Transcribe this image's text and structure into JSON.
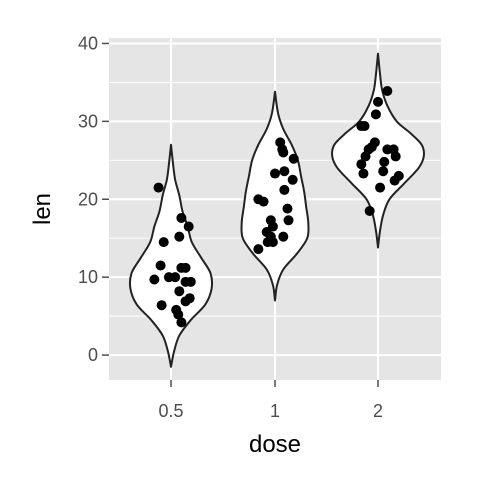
{
  "chart_data": {
    "type": "violin",
    "title": "",
    "xlabel": "dose",
    "ylabel": "len",
    "ylim": [
      -3.2,
      40.7
    ],
    "yticks": [
      0,
      10,
      20,
      30,
      40
    ],
    "ytick_labels": [
      "0",
      "10",
      "20",
      "30",
      "40"
    ],
    "grid": true,
    "legend": "none",
    "colors": {
      "panel": "#e5e5e5",
      "grid": "#ffffff",
      "violin_fill": "#ffffff",
      "violin_stroke": "#222222",
      "point": "#000000",
      "tick_label": "#4d4d4d"
    },
    "categories": [
      "0.5",
      "1",
      "2"
    ],
    "series": [
      {
        "category": "0.5",
        "points": [
          {
            "x": -0.12,
            "y": 21.5
          },
          {
            "x": 0.1,
            "y": 17.6
          },
          {
            "x": 0.17,
            "y": 16.5
          },
          {
            "x": 0.08,
            "y": 15.2
          },
          {
            "x": -0.07,
            "y": 14.5
          },
          {
            "x": -0.1,
            "y": 11.5
          },
          {
            "x": 0.1,
            "y": 11.2
          },
          {
            "x": 0.14,
            "y": 11.2
          },
          {
            "x": -0.16,
            "y": 9.7
          },
          {
            "x": -0.02,
            "y": 10.0
          },
          {
            "x": 0.04,
            "y": 10.0
          },
          {
            "x": 0.14,
            "y": 9.4
          },
          {
            "x": 0.19,
            "y": 9.4
          },
          {
            "x": 0.08,
            "y": 8.2
          },
          {
            "x": 0.18,
            "y": 7.3
          },
          {
            "x": 0.14,
            "y": 6.9
          },
          {
            "x": -0.09,
            "y": 6.4
          },
          {
            "x": 0.05,
            "y": 5.8
          },
          {
            "x": 0.07,
            "y": 5.2
          },
          {
            "x": 0.1,
            "y": 4.2
          }
        ],
        "density": [
          {
            "y": -1.5,
            "hw": 0.0
          },
          {
            "y": 0.5,
            "hw": 0.03
          },
          {
            "y": 2.5,
            "hw": 0.08
          },
          {
            "y": 4.5,
            "hw": 0.19
          },
          {
            "y": 6.5,
            "hw": 0.33
          },
          {
            "y": 8.5,
            "hw": 0.39
          },
          {
            "y": 10.5,
            "hw": 0.38
          },
          {
            "y": 12.5,
            "hw": 0.29
          },
          {
            "y": 14.5,
            "hw": 0.2
          },
          {
            "y": 16.5,
            "hw": 0.16
          },
          {
            "y": 18.5,
            "hw": 0.11
          },
          {
            "y": 20.5,
            "hw": 0.08
          },
          {
            "y": 22.5,
            "hw": 0.04
          },
          {
            "y": 24.5,
            "hw": 0.02
          },
          {
            "y": 27.0,
            "hw": 0.0
          }
        ]
      },
      {
        "category": "1",
        "points": [
          {
            "x": 0.05,
            "y": 27.3
          },
          {
            "x": 0.07,
            "y": 26.4
          },
          {
            "x": 0.08,
            "y": 26.0
          },
          {
            "x": 0.18,
            "y": 25.2
          },
          {
            "x": 0.0,
            "y": 23.3
          },
          {
            "x": 0.09,
            "y": 23.6
          },
          {
            "x": 0.17,
            "y": 22.5
          },
          {
            "x": 0.09,
            "y": 21.2
          },
          {
            "x": -0.16,
            "y": 20.0
          },
          {
            "x": -0.11,
            "y": 19.7
          },
          {
            "x": 0.12,
            "y": 18.8
          },
          {
            "x": -0.04,
            "y": 17.3
          },
          {
            "x": -0.02,
            "y": 16.5
          },
          {
            "x": 0.13,
            "y": 17.3
          },
          {
            "x": -0.08,
            "y": 15.8
          },
          {
            "x": -0.04,
            "y": 15.2
          },
          {
            "x": 0.08,
            "y": 15.2
          },
          {
            "x": -0.02,
            "y": 14.5
          },
          {
            "x": -0.07,
            "y": 14.5
          },
          {
            "x": -0.16,
            "y": 13.6
          }
        ],
        "density": [
          {
            "y": 7.0,
            "hw": 0.0
          },
          {
            "y": 9.0,
            "hw": 0.02
          },
          {
            "y": 11.0,
            "hw": 0.08
          },
          {
            "y": 13.0,
            "hw": 0.21
          },
          {
            "y": 15.0,
            "hw": 0.31
          },
          {
            "y": 17.0,
            "hw": 0.32
          },
          {
            "y": 19.0,
            "hw": 0.3
          },
          {
            "y": 21.0,
            "hw": 0.28
          },
          {
            "y": 23.0,
            "hw": 0.25
          },
          {
            "y": 25.0,
            "hw": 0.22
          },
          {
            "y": 27.0,
            "hw": 0.16
          },
          {
            "y": 29.0,
            "hw": 0.08
          },
          {
            "y": 31.0,
            "hw": 0.03
          },
          {
            "y": 33.8,
            "hw": 0.0
          }
        ]
      },
      {
        "category": "2",
        "points": [
          {
            "x": 0.09,
            "y": 33.9
          },
          {
            "x": 0.0,
            "y": 32.5
          },
          {
            "x": -0.02,
            "y": 30.9
          },
          {
            "x": -0.13,
            "y": 29.4
          },
          {
            "x": -0.16,
            "y": 29.4
          },
          {
            "x": -0.03,
            "y": 27.3
          },
          {
            "x": -0.06,
            "y": 26.7
          },
          {
            "x": -0.09,
            "y": 26.4
          },
          {
            "x": 0.15,
            "y": 26.4
          },
          {
            "x": 0.09,
            "y": 26.4
          },
          {
            "x": -0.12,
            "y": 25.5
          },
          {
            "x": 0.17,
            "y": 25.5
          },
          {
            "x": 0.06,
            "y": 24.8
          },
          {
            "x": -0.16,
            "y": 24.5
          },
          {
            "x": 0.05,
            "y": 23.6
          },
          {
            "x": 0.2,
            "y": 23.0
          },
          {
            "x": -0.14,
            "y": 23.3
          },
          {
            "x": 0.16,
            "y": 22.4
          },
          {
            "x": 0.02,
            "y": 21.5
          },
          {
            "x": -0.08,
            "y": 18.5
          }
        ],
        "density": [
          {
            "y": 13.8,
            "hw": 0.0
          },
          {
            "y": 16.0,
            "hw": 0.02
          },
          {
            "y": 18.0,
            "hw": 0.05
          },
          {
            "y": 20.0,
            "hw": 0.11
          },
          {
            "y": 22.0,
            "hw": 0.25
          },
          {
            "y": 24.0,
            "hw": 0.39
          },
          {
            "y": 25.5,
            "hw": 0.44
          },
          {
            "y": 27.0,
            "hw": 0.42
          },
          {
            "y": 28.5,
            "hw": 0.31
          },
          {
            "y": 30.0,
            "hw": 0.18
          },
          {
            "y": 32.0,
            "hw": 0.09
          },
          {
            "y": 34.0,
            "hw": 0.04
          },
          {
            "y": 36.0,
            "hw": 0.02
          },
          {
            "y": 38.7,
            "hw": 0.0
          }
        ]
      }
    ]
  }
}
